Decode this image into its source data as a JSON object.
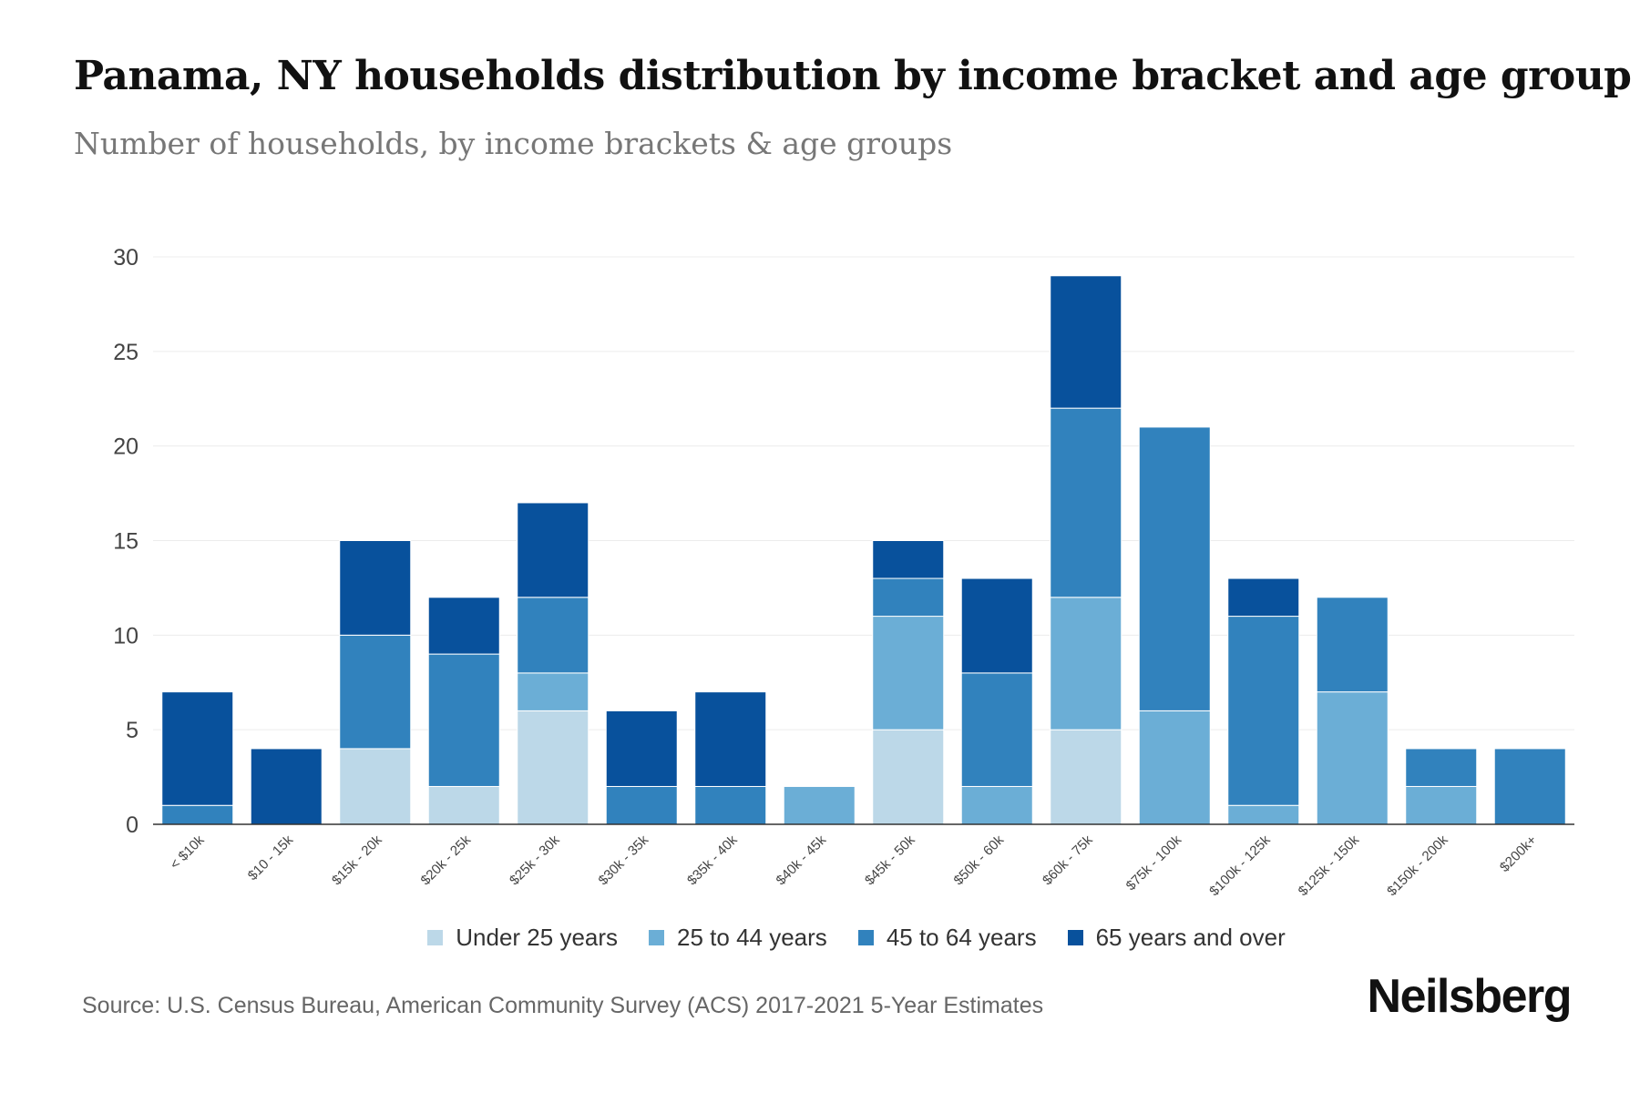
{
  "header": {
    "title": "Panama, NY households distribution by income bracket and age group",
    "subtitle": "Number of households, by income brackets & age groups"
  },
  "footer": {
    "source": "Source: U.S. Census Bureau, American Community Survey (ACS) 2017-2021 5-Year Estimates",
    "brand": "Neilsberg"
  },
  "chart_data": {
    "type": "bar",
    "stacked": true,
    "title": "Panama, NY households distribution by income bracket and age group",
    "subtitle": "Number of households, by income brackets & age groups",
    "xlabel": "",
    "ylabel": "",
    "ylim": [
      0,
      30
    ],
    "yticks": [
      0,
      5,
      10,
      15,
      20,
      25,
      30
    ],
    "grid": true,
    "legend_position": "bottom",
    "categories": [
      "< $10k",
      "$10 - 15k",
      "$15k - 20k",
      "$20k - 25k",
      "$25k - 30k",
      "$30k - 35k",
      "$35k - 40k",
      "$40k - 45k",
      "$45k - 50k",
      "$50k - 60k",
      "$60k - 75k",
      "$75k - 100k",
      "$100k - 125k",
      "$125k - 150k",
      "$150k - 200k",
      "$200k+"
    ],
    "series": [
      {
        "name": "Under 25 years",
        "color": "#bcd8e8",
        "values": [
          0,
          0,
          4,
          2,
          6,
          0,
          0,
          0,
          5,
          0,
          5,
          0,
          0,
          0,
          0,
          0
        ]
      },
      {
        "name": "25 to 44 years",
        "color": "#6baed6",
        "values": [
          0,
          0,
          0,
          0,
          2,
          0,
          0,
          2,
          6,
          2,
          7,
          6,
          1,
          7,
          2,
          0
        ]
      },
      {
        "name": "45 to 64 years",
        "color": "#3182bd",
        "values": [
          1,
          0,
          6,
          7,
          4,
          2,
          2,
          0,
          2,
          6,
          10,
          15,
          10,
          5,
          2,
          4
        ]
      },
      {
        "name": "65 years and over",
        "color": "#08519c",
        "values": [
          6,
          4,
          5,
          3,
          5,
          4,
          5,
          0,
          2,
          5,
          7,
          0,
          2,
          0,
          0,
          0
        ]
      }
    ]
  }
}
